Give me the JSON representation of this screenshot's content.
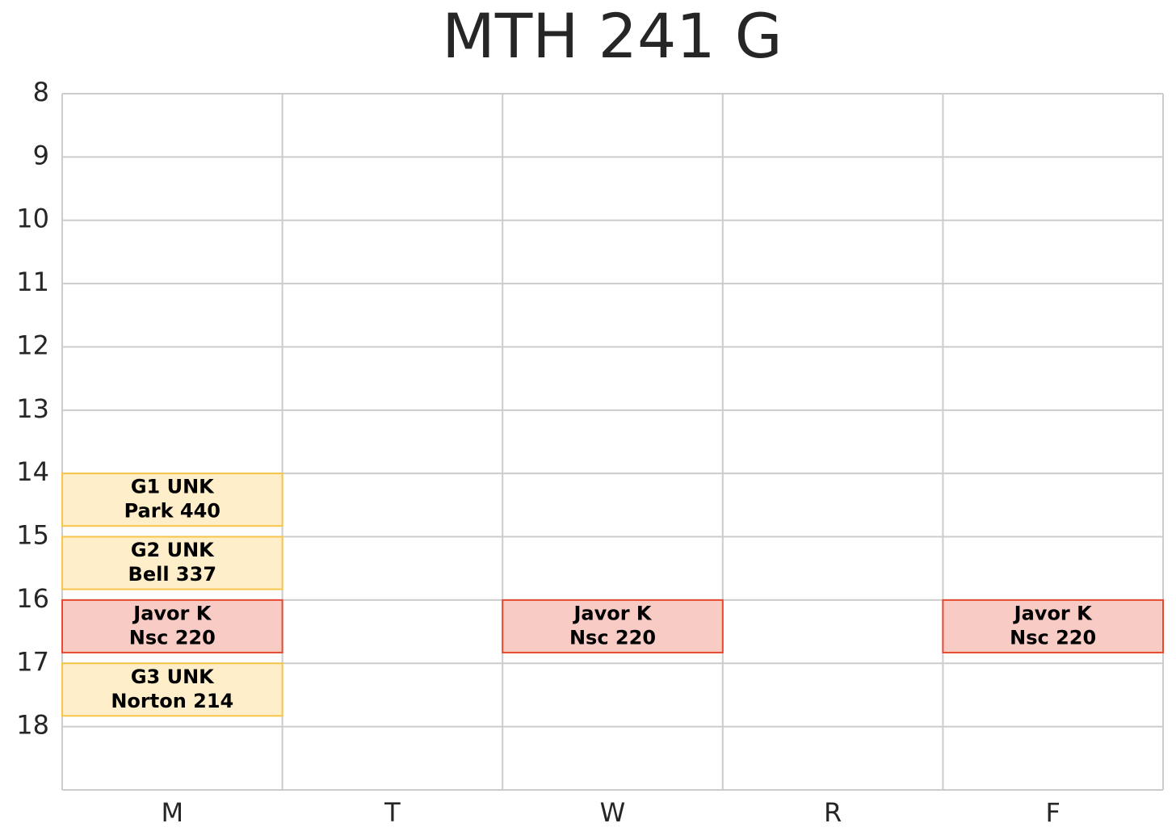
{
  "chart_data": {
    "type": "schedule",
    "title": "MTH 241 G",
    "categories": [
      "M",
      "T",
      "W",
      "R",
      "F"
    ],
    "ylim": [
      19,
      8
    ],
    "yticks": [
      8,
      9,
      10,
      11,
      12,
      13,
      14,
      15,
      16,
      17,
      18
    ],
    "grid": true,
    "events": [
      {
        "day": "M",
        "start": 14,
        "end": 14.83,
        "label": [
          "G1 UNK",
          "Park 440"
        ],
        "color": "#ffeeca",
        "edgecolor": "#f7c548"
      },
      {
        "day": "M",
        "start": 15,
        "end": 15.83,
        "label": [
          "G2 UNK",
          "Bell 337"
        ],
        "color": "#ffeeca",
        "edgecolor": "#f7c548"
      },
      {
        "day": "M",
        "start": 16,
        "end": 16.83,
        "label": [
          "Javor K",
          "Nsc 220"
        ],
        "color": "#f8cbc4",
        "edgecolor": "#e64a33"
      },
      {
        "day": "M",
        "start": 17,
        "end": 17.83,
        "label": [
          "G3 UNK",
          "Norton 214"
        ],
        "color": "#ffeeca",
        "edgecolor": "#f7c548"
      },
      {
        "day": "W",
        "start": 16,
        "end": 16.83,
        "label": [
          "Javor K",
          "Nsc 220"
        ],
        "color": "#f8cbc4",
        "edgecolor": "#e64a33"
      },
      {
        "day": "F",
        "start": 16,
        "end": 16.83,
        "label": [
          "Javor K",
          "Nsc 220"
        ],
        "color": "#f8cbc4",
        "edgecolor": "#e64a33"
      }
    ]
  }
}
